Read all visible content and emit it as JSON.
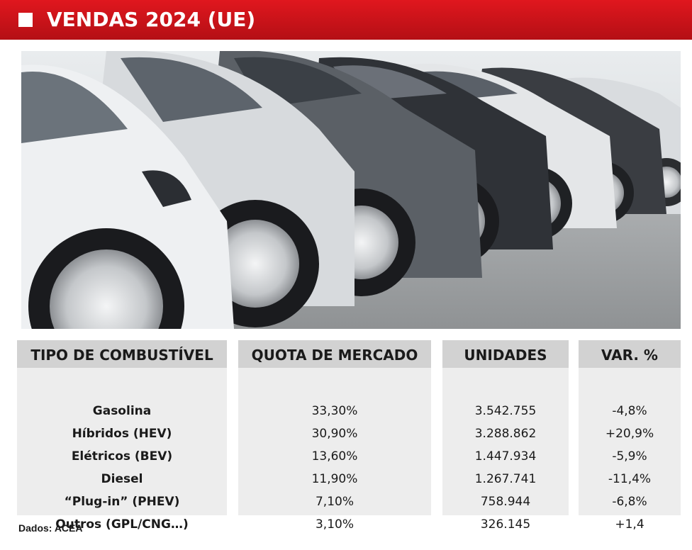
{
  "header": {
    "title": "VENDAS 2024 (UE)"
  },
  "photo": {
    "description_icon": "cars-photo"
  },
  "chart_data": {
    "type": "table",
    "columns": [
      "TIPO DE COMBUSTÍVEL",
      "QUOTA DE MERCADO",
      "UNIDADES",
      "VAR. %"
    ],
    "rows": [
      [
        "Gasolina",
        "33,30%",
        "3.542.755",
        "-4,8%"
      ],
      [
        "Híbridos (HEV)",
        "30,90%",
        "3.288.862",
        "+20,9%"
      ],
      [
        "Elétricos (BEV)",
        "13,60%",
        "1.447.934",
        "-5,9%"
      ],
      [
        "Diesel",
        "11,90%",
        "1.267.741",
        "-11,4%"
      ],
      [
        "“Plug-in” (PHEV)",
        "7,10%",
        "758.944",
        "-6,8%"
      ],
      [
        "Outros (GPL/CNG…)",
        "3,10%",
        "326.145",
        "+1,4"
      ]
    ]
  },
  "footer": {
    "source": "Dados: ACEA"
  }
}
